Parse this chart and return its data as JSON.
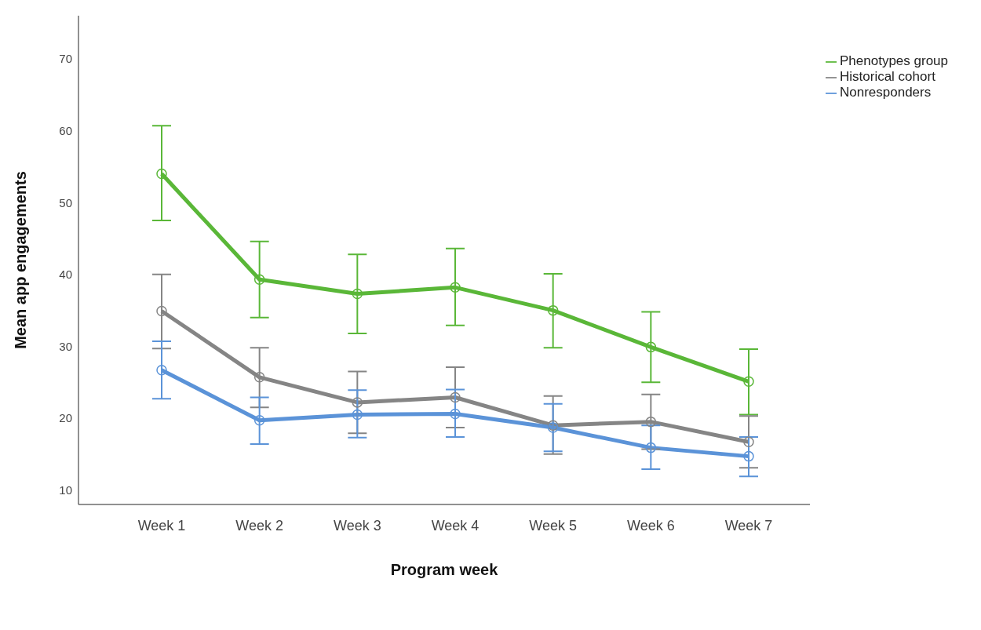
{
  "chart_data": {
    "type": "line",
    "xlabel": "Program week",
    "ylabel": "Mean app engagements",
    "categories": [
      "Week 1",
      "Week 2",
      "Week 3",
      "Week 4",
      "Week 5",
      "Week 6",
      "Week 7"
    ],
    "series": [
      {
        "name": "Phenotypes group",
        "color": "#5ab738",
        "values": [
          54,
          39.3,
          37.3,
          38.2,
          35,
          29.9,
          25.1
        ],
        "errors": [
          [
            47.5,
            60.7
          ],
          [
            34,
            44.6
          ],
          [
            31.8,
            42.8
          ],
          [
            32.9,
            43.6
          ],
          [
            29.8,
            40.1
          ],
          [
            25,
            34.8
          ],
          [
            20.5,
            29.6
          ]
        ]
      },
      {
        "name": "Historical cohort",
        "color": "#858585",
        "values": [
          34.9,
          25.7,
          22.2,
          22.9,
          19,
          19.5,
          16.7
        ],
        "errors": [
          [
            29.7,
            40
          ],
          [
            21.5,
            29.8
          ],
          [
            17.9,
            26.5
          ],
          [
            18.7,
            27.1
          ],
          [
            15,
            23.1
          ],
          [
            15.7,
            23.3
          ],
          [
            13.1,
            20.3
          ]
        ]
      },
      {
        "name": "Nonresponders",
        "color": "#5b93d8",
        "values": [
          26.7,
          19.7,
          20.5,
          20.6,
          18.7,
          15.9,
          14.7
        ],
        "errors": [
          [
            22.7,
            30.7
          ],
          [
            16.4,
            22.9
          ],
          [
            17.3,
            23.9
          ],
          [
            17.4,
            24
          ],
          [
            15.4,
            22
          ],
          [
            12.9,
            19
          ],
          [
            11.9,
            17.4
          ]
        ]
      }
    ],
    "ylim": [
      8,
      76
    ],
    "yticks": [
      10,
      20,
      30,
      40,
      50,
      60,
      70
    ],
    "grid": false,
    "legend": "top right",
    "marker": "circle",
    "line_style": "solid"
  }
}
